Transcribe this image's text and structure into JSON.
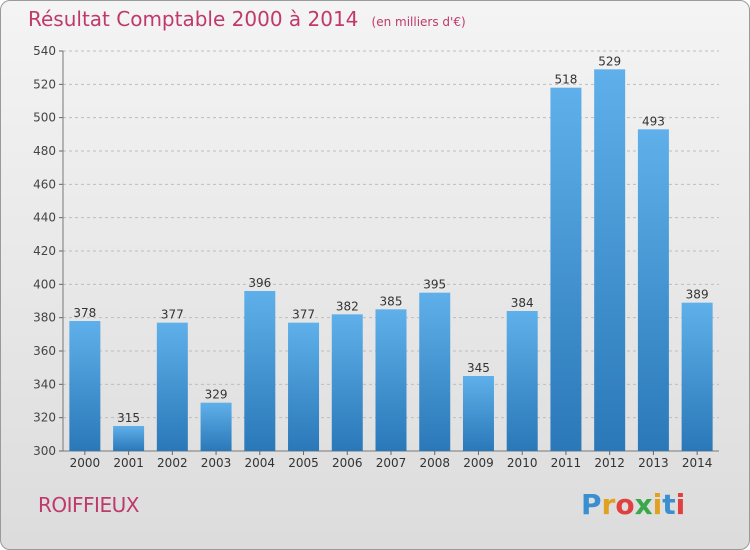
{
  "header": {
    "title": "Résultat Comptable 2000 à 2014",
    "unit": "(en milliers d'€)"
  },
  "footer": {
    "commune": "ROIFFIEUX",
    "brand_letters": [
      "P",
      "r",
      "o",
      "x",
      "i",
      "t",
      "i"
    ],
    "brand_colors": [
      "#3a8fd0",
      "#e0a020",
      "#e04040",
      "#3aa84a",
      "#e0a020",
      "#3a8fd0",
      "#e04040"
    ]
  },
  "colors": {
    "title": "#c0396b",
    "bar_top": "#5fb0ea",
    "bar_bottom": "#2a78b8",
    "grid": "#bdbdbd"
  },
  "chart_data": {
    "type": "bar",
    "title": "Résultat Comptable 2000 à 2014",
    "categories": [
      "2000",
      "2001",
      "2002",
      "2003",
      "2004",
      "2005",
      "2006",
      "2007",
      "2008",
      "2009",
      "2010",
      "2011",
      "2012",
      "2013",
      "2014"
    ],
    "values": [
      378,
      315,
      377,
      329,
      396,
      377,
      382,
      385,
      395,
      345,
      384,
      518,
      529,
      493,
      389
    ],
    "ylim": [
      300,
      540
    ],
    "yticks": [
      300,
      320,
      340,
      360,
      380,
      400,
      420,
      440,
      460,
      480,
      500,
      520,
      540
    ],
    "grid": true,
    "xlabel": "",
    "ylabel": ""
  }
}
